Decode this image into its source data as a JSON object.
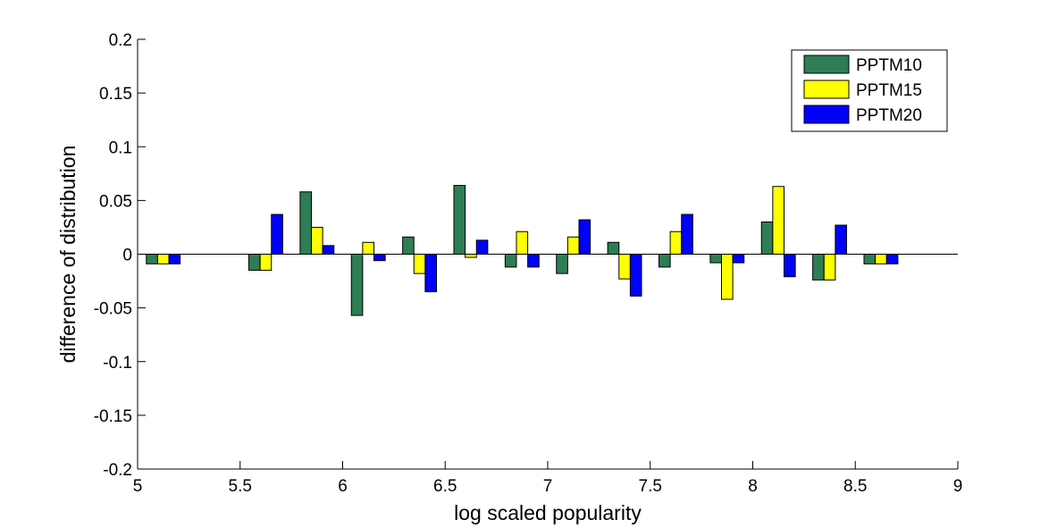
{
  "chart_data": {
    "type": "bar",
    "xlabel": "log scaled popularity",
    "ylabel": "difference of distribution",
    "xlim": [
      5,
      9
    ],
    "ylim": [
      -0.2,
      0.2
    ],
    "xticks": [
      "5",
      "5.5",
      "6",
      "6.5",
      "7",
      "7.5",
      "8",
      "8.5",
      "9"
    ],
    "yticks": [
      "0.2",
      "0.15",
      "0.1",
      "0.05",
      "0",
      "-0.05",
      "-0.1",
      "-0.15",
      "-0.2"
    ],
    "legend_position": "top-right",
    "bar_width": 0.055,
    "x": [
      5.125,
      5.375,
      5.625,
      5.875,
      6.125,
      6.375,
      6.625,
      6.875,
      7.125,
      7.375,
      7.625,
      7.875,
      8.125,
      8.375,
      8.625
    ],
    "series": [
      {
        "name": "PPTM10",
        "color": "#2e7d54",
        "offset": -0.055,
        "values": [
          -0.009,
          null,
          -0.015,
          0.058,
          -0.057,
          0.016,
          0.064,
          -0.012,
          -0.018,
          0.011,
          -0.012,
          -0.008,
          0.03,
          -0.024,
          -0.009
        ]
      },
      {
        "name": "PPTM15",
        "color": "#ffff00",
        "offset": 0,
        "values": [
          -0.009,
          null,
          -0.015,
          0.025,
          0.011,
          -0.018,
          -0.003,
          0.021,
          0.016,
          -0.023,
          0.021,
          -0.042,
          0.063,
          -0.024,
          -0.009
        ]
      },
      {
        "name": "PPTM20",
        "color": "#0000ff",
        "offset": 0.055,
        "values": [
          -0.009,
          null,
          0.037,
          0.008,
          -0.006,
          -0.035,
          0.013,
          -0.012,
          0.032,
          -0.039,
          0.037,
          -0.008,
          -0.021,
          0.027,
          -0.009
        ]
      }
    ]
  }
}
